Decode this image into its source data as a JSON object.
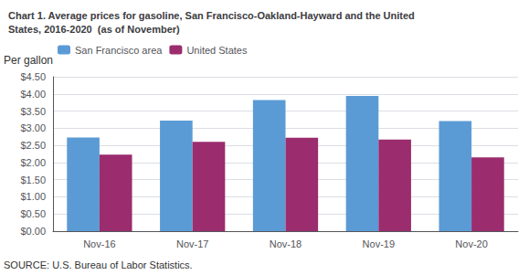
{
  "chart_data": {
    "type": "bar",
    "title": "Chart 1. Average prices for gasoline, San Francisco-Oakland-Hayward and the United\nStates, 2016-2020  (as of November)",
    "y_label": "Per gallon",
    "annotations": [
      "SOURCE: U.S. Bureau of Labor Statistics."
    ],
    "categories": [
      "Nov-16",
      "Nov-17",
      "Nov-18",
      "Nov-19",
      "Nov-20"
    ],
    "series": [
      {
        "name": "San Francisco area",
        "color": "#5B9BD5",
        "values": [
          2.73,
          3.22,
          3.82,
          3.94,
          3.21
        ]
      },
      {
        "name": "United States",
        "color": "#9B2C6E",
        "values": [
          2.23,
          2.6,
          2.72,
          2.67,
          2.15
        ]
      }
    ],
    "ylim": [
      0,
      4.5
    ],
    "yticks": [
      {
        "value": 0.0,
        "label": "$0.00"
      },
      {
        "value": 0.5,
        "label": "$0.50"
      },
      {
        "value": 1.0,
        "label": "$1.00"
      },
      {
        "value": 1.5,
        "label": "$1.50"
      },
      {
        "value": 2.0,
        "label": "$2.00"
      },
      {
        "value": 2.5,
        "label": "$2.50"
      },
      {
        "value": 3.0,
        "label": "$3.00"
      },
      {
        "value": 3.5,
        "label": "$3.50"
      },
      {
        "value": 4.0,
        "label": "$4.00"
      },
      {
        "value": 4.5,
        "label": "$4.50"
      }
    ],
    "grid": true,
    "legend": "upper left"
  }
}
